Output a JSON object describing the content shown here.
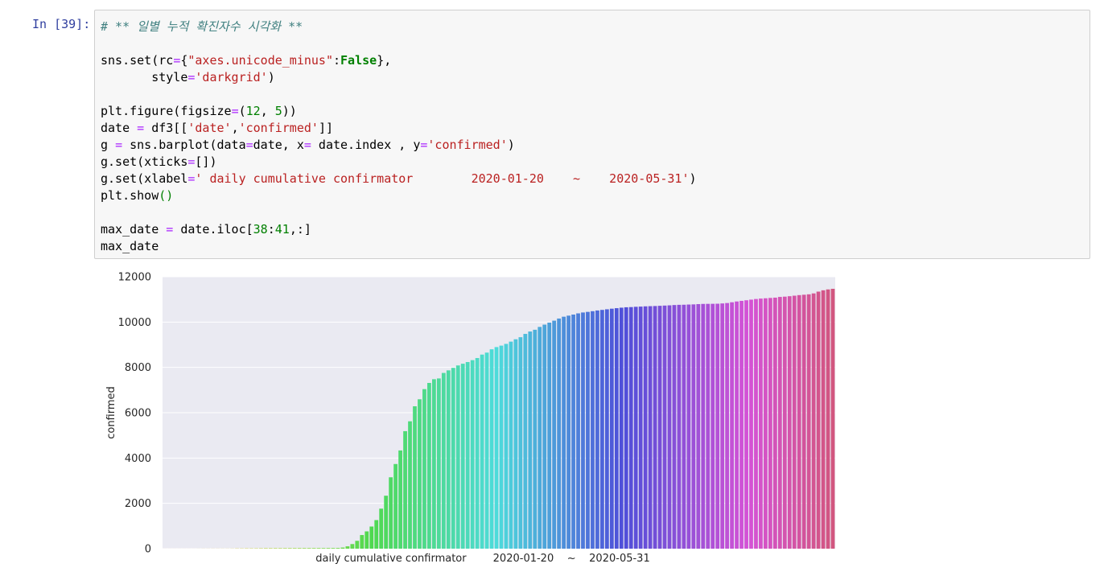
{
  "cell": {
    "prompt": "In [39]:",
    "code_lines": [
      [
        [
          "comment",
          "# ** 일별 누적 확진자수 시각화 **"
        ]
      ],
      [],
      [
        [
          "name",
          "sns.set(rc"
        ],
        [
          "op",
          "="
        ],
        [
          "punct",
          "{"
        ],
        [
          "str",
          "\"axes.unicode_minus\""
        ],
        [
          "punct",
          ":"
        ],
        [
          "kw",
          "False"
        ],
        [
          "punct",
          "},"
        ]
      ],
      [
        [
          "name",
          "       style"
        ],
        [
          "op",
          "="
        ],
        [
          "str",
          "'darkgrid'"
        ],
        [
          "punct",
          ")"
        ]
      ],
      [],
      [
        [
          "name",
          "plt.figure(figsize"
        ],
        [
          "op",
          "="
        ],
        [
          "punct",
          "("
        ],
        [
          "num",
          "12"
        ],
        [
          "punct",
          ", "
        ],
        [
          "num",
          "5"
        ],
        [
          "punct",
          "))"
        ]
      ],
      [
        [
          "name",
          "date "
        ],
        [
          "op",
          "="
        ],
        [
          "name",
          " df3[["
        ],
        [
          "str",
          "'date'"
        ],
        [
          "punct",
          ","
        ],
        [
          "str",
          "'confirmed'"
        ],
        [
          "punct",
          "]]"
        ]
      ],
      [
        [
          "name",
          "g "
        ],
        [
          "op",
          "="
        ],
        [
          "name",
          " sns.barplot(data"
        ],
        [
          "op",
          "="
        ],
        [
          "name",
          "date, x"
        ],
        [
          "op",
          "="
        ],
        [
          "name",
          " date.index , y"
        ],
        [
          "op",
          "="
        ],
        [
          "str",
          "'confirmed'"
        ],
        [
          "punct",
          ")"
        ]
      ],
      [
        [
          "name",
          "g.set(xticks"
        ],
        [
          "op",
          "="
        ],
        [
          "punct",
          "[])"
        ]
      ],
      [
        [
          "name",
          "g.set(xlabel"
        ],
        [
          "op",
          "="
        ],
        [
          "str",
          "' daily cumulative confirmator        2020-01-20    ~    2020-05-31'"
        ],
        [
          "punct",
          ")"
        ]
      ],
      [
        [
          "name",
          "plt.show"
        ],
        [
          "num",
          "()"
        ]
      ],
      [],
      [
        [
          "name",
          "max_date "
        ],
        [
          "op",
          "="
        ],
        [
          "name",
          " date.iloc["
        ],
        [
          "num",
          "38"
        ],
        [
          "punct",
          ":"
        ],
        [
          "num",
          "41"
        ],
        [
          "punct",
          ",:]"
        ]
      ],
      [
        [
          "name",
          "max_date"
        ]
      ]
    ]
  },
  "chart_data": {
    "type": "bar",
    "style": "darkgrid",
    "xlabel": "daily cumulative confirmator        2020-01-20    ~    2020-05-31",
    "ylabel": "confirmed",
    "ylim": [
      0,
      12000
    ],
    "yticks": [
      0,
      2000,
      4000,
      6000,
      8000,
      10000,
      12000
    ],
    "xticks": [],
    "grid": true,
    "palette": "husl",
    "values": [
      1,
      1,
      1,
      1,
      1,
      1,
      1,
      2,
      3,
      3,
      4,
      4,
      4,
      4,
      6,
      11,
      12,
      15,
      15,
      16,
      19,
      23,
      23,
      24,
      24,
      25,
      27,
      27,
      28,
      28,
      28,
      28,
      28,
      28,
      29,
      30,
      31,
      51,
      104,
      204,
      346,
      602,
      763,
      977,
      1261,
      1766,
      2337,
      3150,
      3736,
      4335,
      5186,
      5621,
      6284,
      6593,
      7041,
      7314,
      7478,
      7513,
      7755,
      7869,
      7979,
      8086,
      8162,
      8236,
      8320,
      8413,
      8565,
      8652,
      8799,
      8897,
      8961,
      9037,
      9137,
      9241,
      9332,
      9478,
      9583,
      9661,
      9786,
      9887,
      9976,
      10062,
      10156,
      10237,
      10284,
      10331,
      10384,
      10423,
      10450,
      10480,
      10512,
      10537,
      10564,
      10591,
      10613,
      10635,
      10653,
      10661,
      10674,
      10683,
      10694,
      10702,
      10708,
      10718,
      10728,
      10738,
      10752,
      10761,
      10765,
      10774,
      10780,
      10793,
      10801,
      10804,
      10806,
      10810,
      10822,
      10840,
      10874,
      10909,
      10936,
      10962,
      10991,
      11018,
      11037,
      11050,
      11065,
      11078,
      11110,
      11122,
      11142,
      11165,
      11190,
      11206,
      11225,
      11265,
      11344,
      11402,
      11441,
      11468
    ]
  }
}
